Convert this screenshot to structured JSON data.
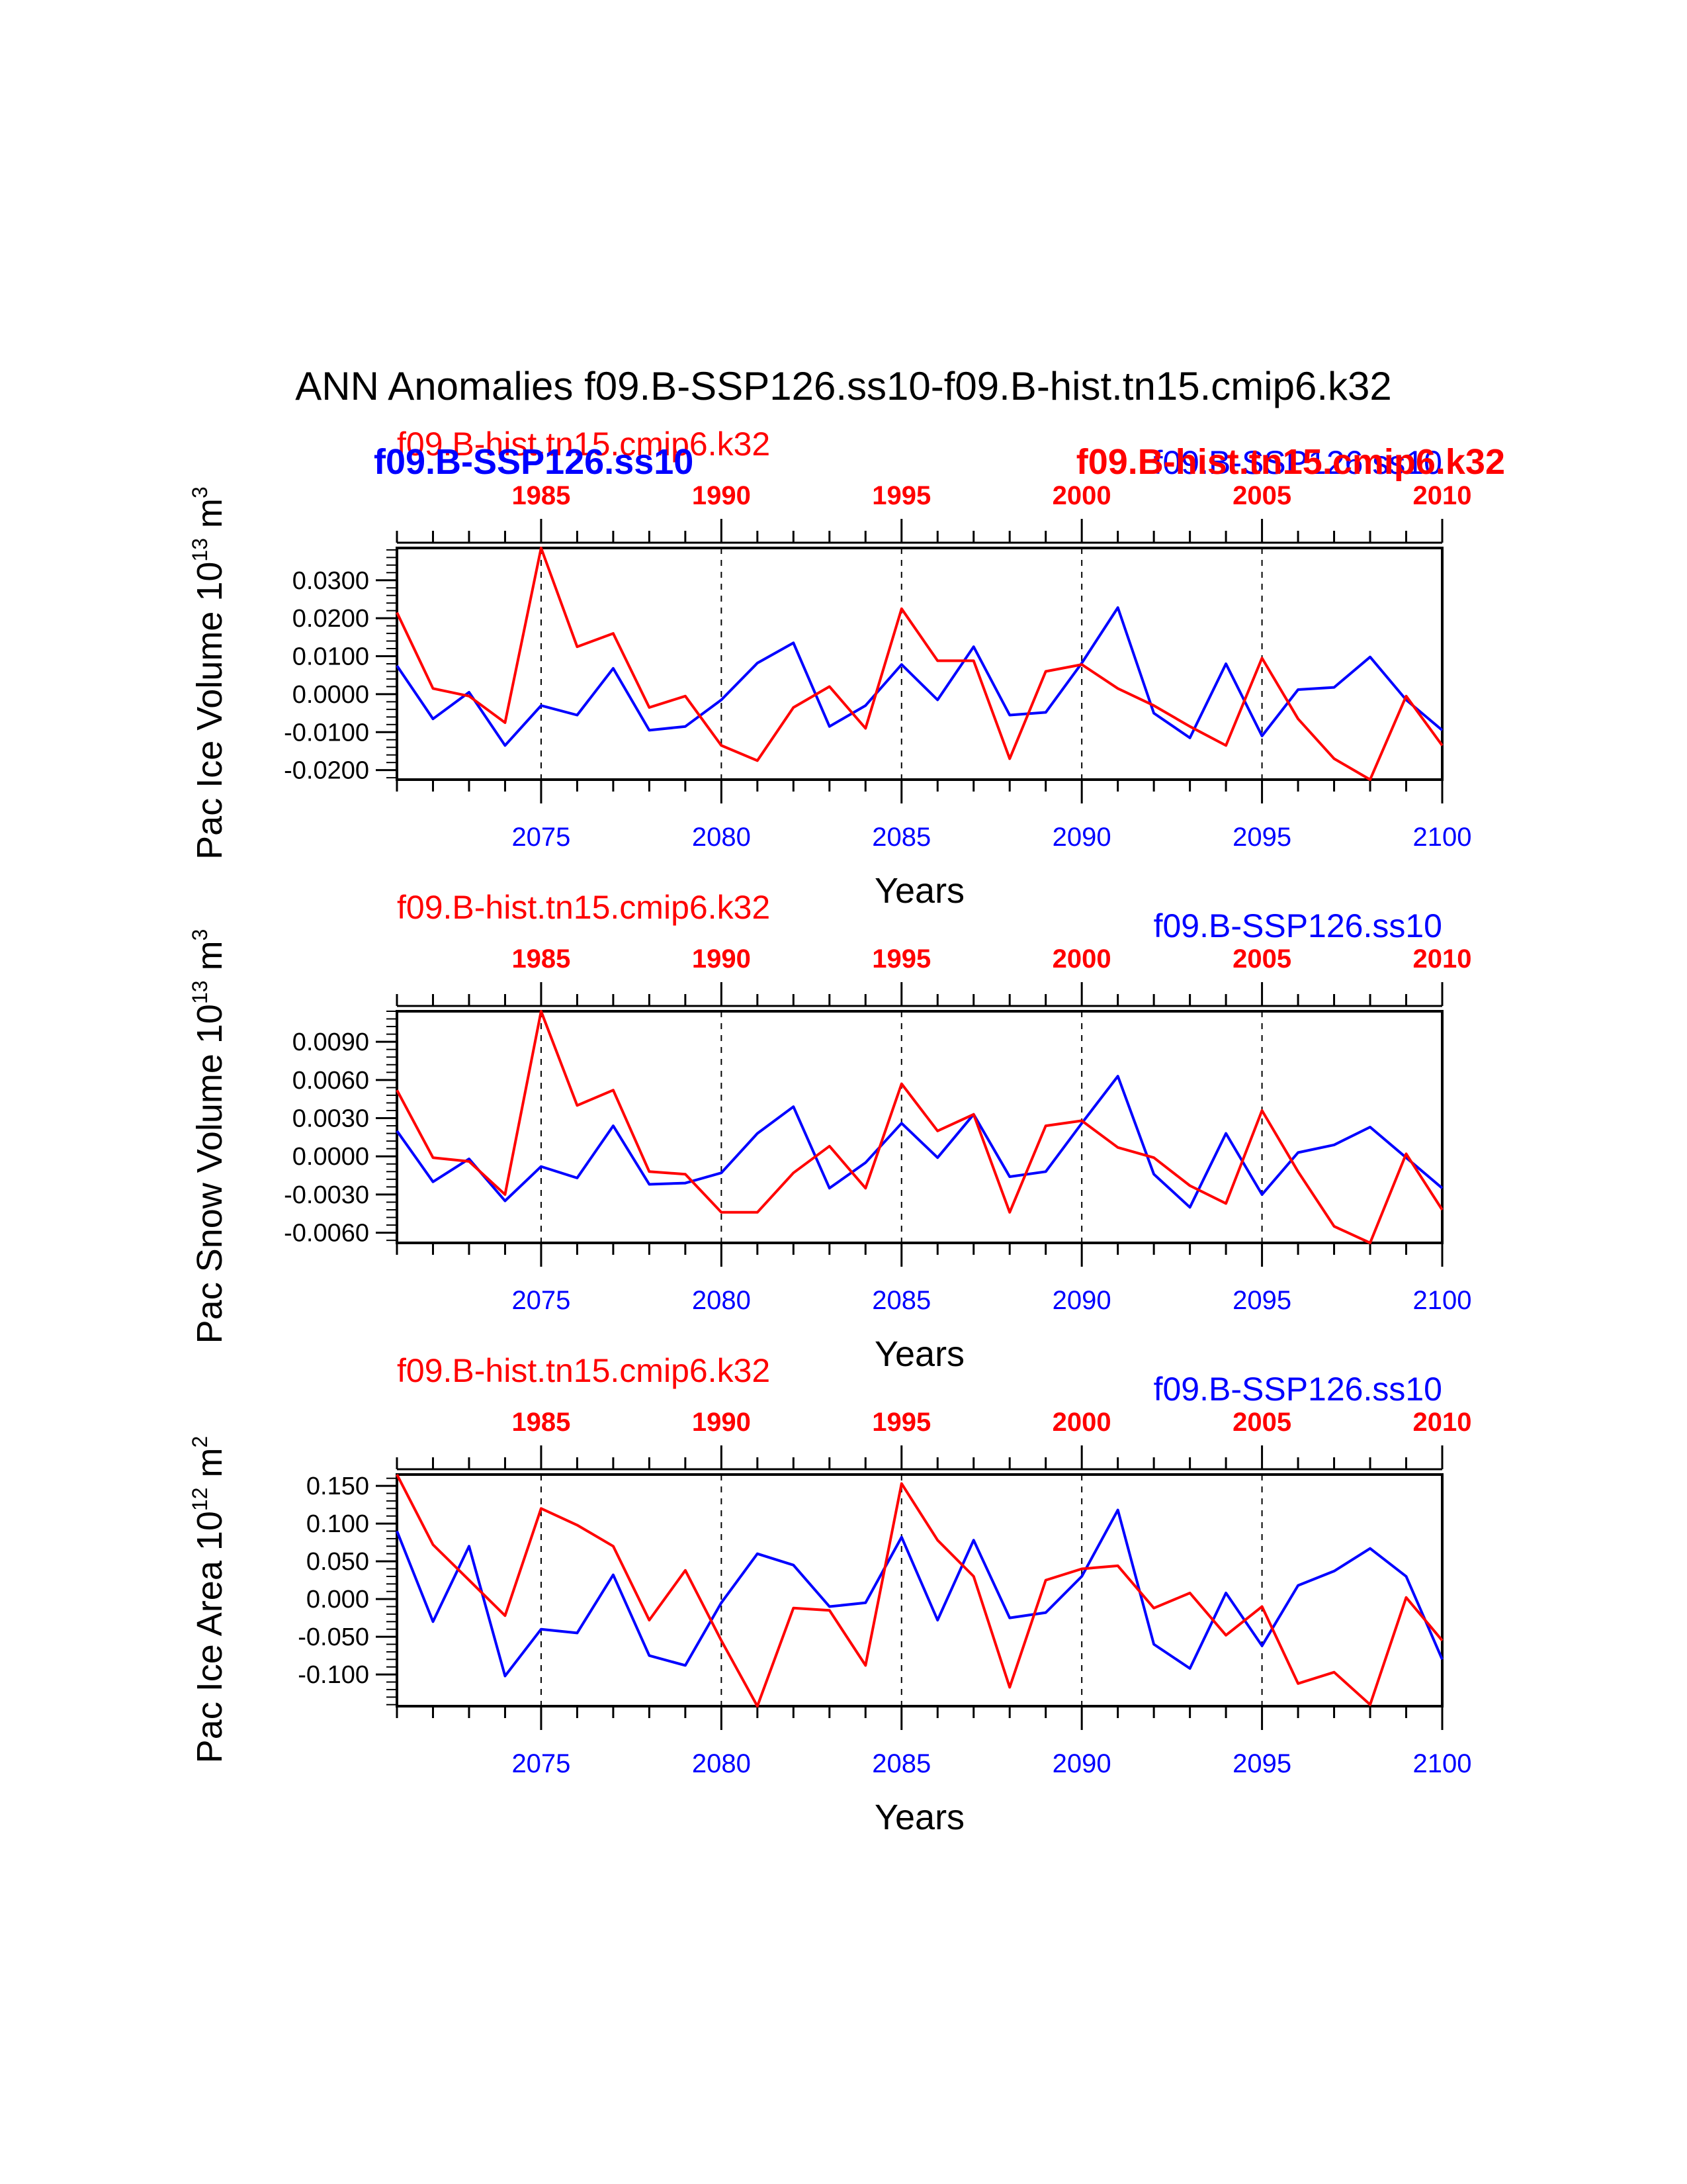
{
  "figure_title": "ANN Anomalies f09.B-SSP126.ss10-f09.B-hist.tn15.cmip6.k32",
  "colors": {
    "ssp": "#0000ff",
    "hist": "#ff0000",
    "axis": "#000000"
  },
  "chart_data": [
    {
      "type": "line",
      "ylabel": "Pac Ice Volume 10",
      "ylabel_exp": "13",
      "ylabel_unit": " m",
      "ylabel_unit_exp": "3",
      "xlabel": "Years",
      "xlim": [
        2071,
        2100
      ],
      "ylim": [
        -0.0225,
        0.0385
      ],
      "yticks": [
        -0.02,
        -0.01,
        0.0,
        0.01,
        0.02,
        0.03
      ],
      "ytick_labels": [
        "-0.0200",
        "-0.0100",
        "0.0000",
        "0.0100",
        "0.0200",
        "0.0300"
      ],
      "bottom_ticks": [
        "2075",
        "2080",
        "2085",
        "2090",
        "2095",
        "2100"
      ],
      "top_ticks": [
        "1985",
        "1990",
        "1995",
        "2000",
        "2005",
        "2010"
      ],
      "legend_hist": "f09.B-hist.tn15.cmip6.k32",
      "legend_ssp": "f09.B-SSP126.ss10",
      "legend_hist_bold": "f09.B-hist.tn15.cmip6.k32",
      "legend_ssp_bold": "f09.B-SSP126.ss10",
      "series": [
        {
          "name": "f09.B-SSP126.ss10",
          "color": "#0000ff",
          "x": [
            2071,
            2072,
            2073,
            2074,
            2075,
            2076,
            2077,
            2078,
            2079,
            2080,
            2081,
            2082,
            2083,
            2084,
            2085,
            2086,
            2087,
            2088,
            2089,
            2090,
            2091,
            2092,
            2093,
            2094,
            2095,
            2096,
            2097,
            2098,
            2099,
            2100
          ],
          "values": [
            0.0075,
            -0.0065,
            0.0005,
            -0.0135,
            -0.003,
            -0.0055,
            0.0068,
            -0.0095,
            -0.0085,
            -0.0015,
            0.0082,
            0.0135,
            -0.0085,
            -0.003,
            0.0078,
            -0.0015,
            0.0125,
            -0.0055,
            -0.0048,
            0.0082,
            0.0228,
            -0.005,
            -0.0115,
            0.008,
            -0.011,
            0.0012,
            0.0018,
            0.0098,
            -0.0015,
            -0.0095
          ]
        },
        {
          "name": "f09.B-hist.tn15.cmip6.k32",
          "color": "#ff0000",
          "x": [
            2071,
            2072,
            2073,
            2074,
            2075,
            2076,
            2077,
            2078,
            2079,
            2080,
            2081,
            2082,
            2083,
            2084,
            2085,
            2086,
            2087,
            2088,
            2089,
            2090,
            2091,
            2092,
            2093,
            2094,
            2095,
            2096,
            2097,
            2098,
            2099,
            2100
          ],
          "values": [
            0.0215,
            0.0015,
            -0.0005,
            -0.0075,
            0.0385,
            0.0125,
            0.016,
            -0.0035,
            -0.0005,
            -0.0135,
            -0.0175,
            -0.0035,
            0.002,
            -0.009,
            0.0225,
            0.0088,
            0.0088,
            -0.017,
            0.006,
            0.0078,
            0.0015,
            -0.003,
            -0.0085,
            -0.0135,
            0.0095,
            -0.0065,
            -0.017,
            -0.0225,
            -0.0005,
            -0.0135
          ]
        }
      ]
    },
    {
      "type": "line",
      "ylabel": "Pac Snow Volume 10",
      "ylabel_exp": "13",
      "ylabel_unit": " m",
      "ylabel_unit_exp": "3",
      "xlabel": "Years",
      "xlim": [
        2071,
        2100
      ],
      "ylim": [
        -0.0068,
        0.0114
      ],
      "yticks": [
        -0.006,
        -0.003,
        0.0,
        0.003,
        0.006,
        0.009
      ],
      "ytick_labels": [
        "-0.0060",
        "-0.0030",
        "0.0000",
        "0.0030",
        "0.0060",
        "0.0090"
      ],
      "bottom_ticks": [
        "2075",
        "2080",
        "2085",
        "2090",
        "2095",
        "2100"
      ],
      "top_ticks": [
        "1985",
        "1990",
        "1995",
        "2000",
        "2005",
        "2010"
      ],
      "legend_hist": "f09.B-hist.tn15.cmip6.k32",
      "legend_ssp": "f09.B-SSP126.ss10",
      "series": [
        {
          "name": "f09.B-SSP126.ss10",
          "color": "#0000ff",
          "x": [
            2071,
            2072,
            2073,
            2074,
            2075,
            2076,
            2077,
            2078,
            2079,
            2080,
            2081,
            2082,
            2083,
            2084,
            2085,
            2086,
            2087,
            2088,
            2089,
            2090,
            2091,
            2092,
            2093,
            2094,
            2095,
            2096,
            2097,
            2098,
            2099,
            2100
          ],
          "values": [
            0.002,
            -0.002,
            -0.0002,
            -0.0035,
            -0.0008,
            -0.0017,
            0.0024,
            -0.0022,
            -0.0021,
            -0.0013,
            0.0018,
            0.0039,
            -0.0025,
            -0.0005,
            0.0026,
            -0.0001,
            0.0033,
            -0.0016,
            -0.0012,
            0.0026,
            0.0063,
            -0.0014,
            -0.004,
            0.0018,
            -0.003,
            0.0003,
            0.0009,
            0.0023,
            -0.0001,
            -0.0025
          ]
        },
        {
          "name": "f09.B-hist.tn15.cmip6.k32",
          "color": "#ff0000",
          "x": [
            2071,
            2072,
            2073,
            2074,
            2075,
            2076,
            2077,
            2078,
            2079,
            2080,
            2081,
            2082,
            2083,
            2084,
            2085,
            2086,
            2087,
            2088,
            2089,
            2090,
            2091,
            2092,
            2093,
            2094,
            2095,
            2096,
            2097,
            2098,
            2099,
            2100
          ],
          "values": [
            0.0052,
            -0.0001,
            -0.0004,
            -0.003,
            0.0114,
            0.004,
            0.0052,
            -0.0012,
            -0.0014,
            -0.0044,
            -0.0044,
            -0.0013,
            0.0008,
            -0.0025,
            0.0057,
            0.002,
            0.0033,
            -0.0044,
            0.0024,
            0.0028,
            0.0007,
            -0.0001,
            -0.0023,
            -0.0037,
            0.0036,
            -0.0012,
            -0.0055,
            -0.0068,
            0.0002,
            -0.0042
          ]
        }
      ]
    },
    {
      "type": "line",
      "ylabel": "Pac Ice Area 10",
      "ylabel_exp": "12",
      "ylabel_unit": " m",
      "ylabel_unit_exp": "2",
      "xlabel": "Years",
      "xlim": [
        2071,
        2100
      ],
      "ylim": [
        -0.142,
        0.165
      ],
      "yticks": [
        -0.1,
        -0.05,
        0.0,
        0.05,
        0.1,
        0.15
      ],
      "ytick_labels": [
        "-0.100",
        "-0.050",
        "0.000",
        "0.050",
        "0.100",
        "0.150"
      ],
      "bottom_ticks": [
        "2075",
        "2080",
        "2085",
        "2090",
        "2095",
        "2100"
      ],
      "top_ticks": [
        "1985",
        "1990",
        "1995",
        "2000",
        "2005",
        "2010"
      ],
      "legend_hist": "f09.B-hist.tn15.cmip6.k32",
      "legend_ssp": "f09.B-SSP126.ss10",
      "series": [
        {
          "name": "f09.B-SSP126.ss10",
          "color": "#0000ff",
          "x": [
            2071,
            2072,
            2073,
            2074,
            2075,
            2076,
            2077,
            2078,
            2079,
            2080,
            2081,
            2082,
            2083,
            2084,
            2085,
            2086,
            2087,
            2088,
            2089,
            2090,
            2091,
            2092,
            2093,
            2094,
            2095,
            2096,
            2097,
            2098,
            2099,
            2100
          ],
          "values": [
            0.09,
            -0.03,
            0.07,
            -0.102,
            -0.04,
            -0.045,
            0.032,
            -0.075,
            -0.088,
            -0.005,
            0.06,
            0.045,
            -0.01,
            -0.005,
            0.082,
            -0.028,
            0.078,
            -0.025,
            -0.018,
            0.03,
            0.118,
            -0.06,
            -0.092,
            0.008,
            -0.062,
            0.018,
            0.037,
            0.067,
            0.03,
            -0.08
          ]
        },
        {
          "name": "f09.B-hist.tn15.cmip6.k32",
          "color": "#ff0000",
          "x": [
            2071,
            2072,
            2073,
            2074,
            2075,
            2076,
            2077,
            2078,
            2079,
            2080,
            2081,
            2082,
            2083,
            2084,
            2085,
            2086,
            2087,
            2088,
            2089,
            2090,
            2091,
            2092,
            2093,
            2094,
            2095,
            2096,
            2097,
            2098,
            2099,
            2100
          ],
          "values": [
            0.165,
            0.072,
            0.025,
            -0.022,
            0.12,
            0.098,
            0.07,
            -0.028,
            0.038,
            -0.055,
            -0.142,
            -0.012,
            -0.015,
            -0.088,
            0.153,
            0.078,
            0.03,
            -0.117,
            0.025,
            0.04,
            0.044,
            -0.012,
            0.008,
            -0.048,
            -0.01,
            -0.112,
            -0.097,
            -0.14,
            0.002,
            -0.055
          ]
        }
      ]
    }
  ]
}
